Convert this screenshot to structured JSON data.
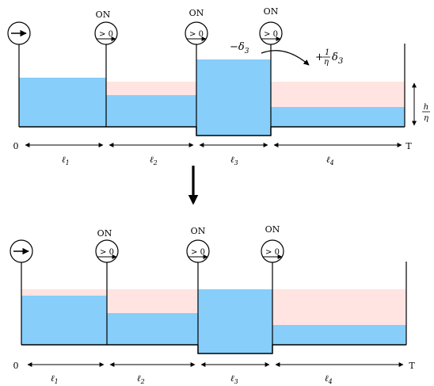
{
  "colors": {
    "water": "#87CEFA",
    "space": "#FFE4E1",
    "stroke": "#000000"
  },
  "labels": {
    "on": "ON",
    "gt_zero": "> 0",
    "start": "0",
    "end": "T",
    "segments": [
      "ℓ",
      "ℓ",
      "ℓ",
      "ℓ"
    ],
    "segment_subs": [
      "1",
      "2",
      "3",
      "4"
    ],
    "minus_delta": "−δ",
    "minus_delta_sub": "3",
    "plus": "+",
    "plus_frac_num": "1",
    "plus_frac_den": "η",
    "plus_delta": "δ",
    "plus_delta_sub": "3",
    "h_num": "h",
    "h_den": "η"
  },
  "icons": {
    "arrow_switch": "right-arrow-circle-icon",
    "on_switch": "greater-than-zero-circle-icon"
  },
  "panels": [
    {
      "id": "top",
      "segments": [
        {
          "ell": 1,
          "level_fraction": 0.62,
          "capacity_fraction": 0.62
        },
        {
          "ell": 2,
          "level_fraction": 0.4,
          "capacity_fraction": 0.57
        },
        {
          "ell": 3,
          "level_fraction": 0.86,
          "capacity_fraction": 0.86,
          "below_baseline": true
        },
        {
          "ell": 4,
          "level_fraction": 0.25,
          "capacity_fraction": 0.57
        }
      ]
    },
    {
      "id": "bottom",
      "segments": [
        {
          "ell": 1,
          "level_fraction": 0.62,
          "capacity_fraction": 0.7
        },
        {
          "ell": 2,
          "level_fraction": 0.4,
          "capacity_fraction": 0.7
        },
        {
          "ell": 3,
          "level_fraction": 0.7,
          "capacity_fraction": 0.7,
          "below_baseline": true
        },
        {
          "ell": 4,
          "level_fraction": 0.25,
          "capacity_fraction": 0.7
        }
      ]
    }
  ]
}
